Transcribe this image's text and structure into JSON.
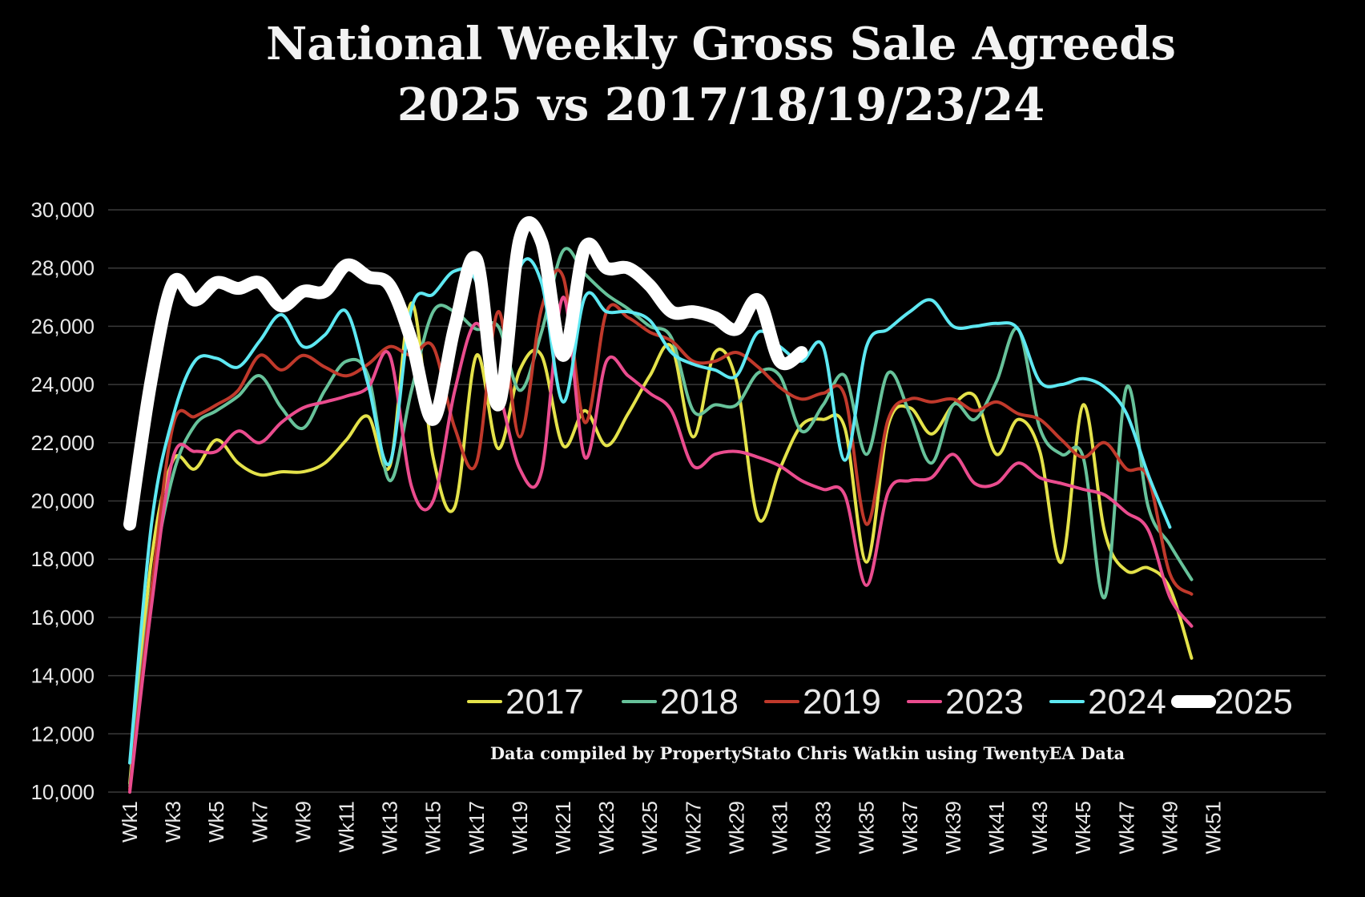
{
  "chart_data": {
    "type": "line",
    "title_line1": "National Weekly Gross Sale Agreeds",
    "title_line2": "2025 vs 2017/18/19/23/24",
    "note": "Data compiled by PropertyStato Chris Watkin using TwentyEA Data",
    "ylim": [
      10000,
      30000
    ],
    "yticks": [
      10000,
      12000,
      14000,
      16000,
      18000,
      20000,
      22000,
      24000,
      26000,
      28000,
      30000
    ],
    "ytick_labels": [
      "10,000",
      "12,000",
      "14,000",
      "16,000",
      "18,000",
      "20,000",
      "22,000",
      "24,000",
      "26,000",
      "28,000",
      "30,000"
    ],
    "x_count": 51,
    "xtick_labels": [
      "Wk1",
      "Wk3",
      "Wk5",
      "Wk7",
      "Wk9",
      "Wk11",
      "Wk13",
      "Wk15",
      "Wk17",
      "Wk19",
      "Wk21",
      "Wk23",
      "Wk25",
      "Wk27",
      "Wk29",
      "Wk31",
      "Wk33",
      "Wk35",
      "Wk37",
      "Wk39",
      "Wk41",
      "Wk43",
      "Wk45",
      "Wk47",
      "Wk49",
      "Wk51"
    ],
    "grid": true,
    "legend_position": "bottom-right",
    "series": [
      {
        "name": "2017",
        "color": "#e4e24a",
        "width": 4,
        "values": [
          10300,
          18000,
          21400,
          21100,
          22100,
          21300,
          20900,
          21000,
          21000,
          21300,
          22100,
          22900,
          21200,
          26800,
          21500,
          19800,
          25000,
          21800,
          24500,
          25000,
          21900,
          23100,
          21900,
          23000,
          24300,
          25300,
          22200,
          25100,
          24100,
          19400,
          21100,
          22600,
          22800,
          22500,
          17900,
          22600,
          23200,
          22300,
          23300,
          23600,
          21600,
          22800,
          21700,
          17900,
          23300,
          18900,
          17600,
          17700,
          17000,
          14600
        ]
      },
      {
        "name": "2018",
        "color": "#67c29a",
        "width": 4,
        "values": [
          10200,
          17000,
          20900,
          22600,
          23100,
          23600,
          24300,
          23200,
          22500,
          23800,
          24800,
          24300,
          20700,
          23800,
          26500,
          26500,
          25900,
          26000,
          23800,
          25800,
          28600,
          27800,
          27100,
          26600,
          26000,
          25600,
          23100,
          23300,
          23300,
          24400,
          24300,
          22400,
          23300,
          24300,
          21600,
          24400,
          23000,
          21300,
          23300,
          22800,
          24100,
          25900,
          22500,
          21600,
          21500,
          16700,
          23900,
          19800,
          18500,
          17300
        ]
      },
      {
        "name": "2019",
        "color": "#c0392b",
        "width": 4,
        "values": [
          10100,
          16900,
          22600,
          22900,
          23300,
          23800,
          25000,
          24500,
          25000,
          24600,
          24300,
          24700,
          25300,
          25000,
          25300,
          22500,
          21300,
          26500,
          22200,
          26600,
          27700,
          22700,
          26500,
          26300,
          25800,
          25500,
          24800,
          24800,
          25100,
          24600,
          23900,
          23500,
          23700,
          23600,
          19200,
          22800,
          23500,
          23400,
          23500,
          23100,
          23400,
          23000,
          22800,
          22100,
          21500,
          22000,
          21100,
          20800,
          17500,
          16800
        ]
      },
      {
        "name": "2023",
        "color": "#ea4c8e",
        "width": 4,
        "values": [
          10000,
          16400,
          21500,
          21700,
          21700,
          22400,
          22000,
          22700,
          23200,
          23400,
          23600,
          23900,
          25000,
          20500,
          20000,
          23800,
          26100,
          23900,
          21100,
          21000,
          27000,
          21500,
          24800,
          24300,
          23700,
          23100,
          21200,
          21600,
          21700,
          21500,
          21200,
          20700,
          20400,
          20200,
          17100,
          20300,
          20700,
          20800,
          21600,
          20600,
          20600,
          21300,
          20800,
          20600,
          20400,
          20200,
          19600,
          19000,
          16700,
          15700
        ]
      },
      {
        "name": "2024",
        "color": "#5ee8f2",
        "width": 4,
        "values": [
          11000,
          19200,
          22900,
          24800,
          24900,
          24600,
          25500,
          26400,
          25300,
          25700,
          26500,
          24000,
          21300,
          26600,
          27100,
          27900,
          27500,
          23800,
          28000,
          27500,
          23400,
          27000,
          26500,
          26500,
          26200,
          25100,
          24700,
          24500,
          24300,
          25800,
          25300,
          24800,
          25300,
          21400,
          25300,
          25900,
          26500,
          26900,
          26000,
          26000,
          26100,
          25900,
          24100,
          24000,
          24200,
          23900,
          23000,
          20900,
          19100
        ]
      },
      {
        "name": "2025",
        "color": "#ffffff",
        "width": 16,
        "values": [
          19200,
          24200,
          27500,
          26900,
          27500,
          27300,
          27500,
          26700,
          27200,
          27200,
          28100,
          27700,
          27400,
          25500,
          22800,
          26000,
          28300,
          23300,
          29000,
          28900,
          25000,
          28700,
          28000,
          28000,
          27400,
          26500,
          26500,
          26300,
          25900,
          26900,
          24800,
          25100
        ]
      }
    ]
  }
}
